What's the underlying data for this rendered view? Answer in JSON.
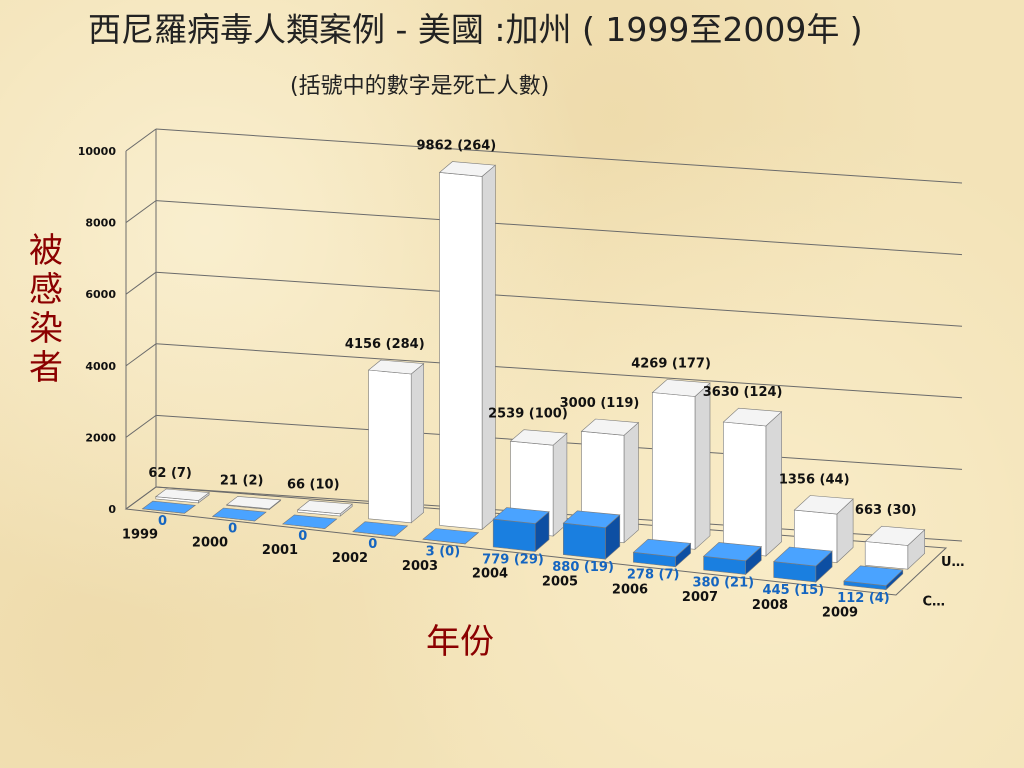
{
  "title": "西尼羅病毒人類案例 - 美國 :加州 ( 1999至2009年 )",
  "subtitle": "(括號中的數字是死亡人數)",
  "ylabel": "被感染者",
  "xlabel": "年份",
  "chart_data": {
    "type": "bar",
    "subtype": "3d-clustered-depth",
    "categories": [
      "1999",
      "2000",
      "2001",
      "2002",
      "2003",
      "2004",
      "2005",
      "2006",
      "2007",
      "2008",
      "2009"
    ],
    "ylim": [
      0,
      10000
    ],
    "yticks": [
      0,
      2000,
      4000,
      6000,
      8000,
      10000
    ],
    "grid": true,
    "legend_position": "right",
    "series": [
      {
        "name": "U…",
        "color": "#ffffff",
        "values": [
          62,
          21,
          66,
          4156,
          9862,
          2539,
          3000,
          4269,
          3630,
          1356,
          663
        ],
        "labels": [
          "62 (7)",
          "21 (2)",
          "66 (10)",
          "4156 (284)",
          "9862 (264)",
          "2539 (100)",
          "3000 (119)",
          "4269 (177)",
          "3630 (124)",
          "1356 (44)",
          "663 (30)"
        ]
      },
      {
        "name": "C…",
        "color": "#1a7fe0",
        "values": [
          0,
          0,
          0,
          0,
          3,
          779,
          880,
          278,
          380,
          445,
          112
        ],
        "labels": [
          "0",
          "0",
          "0",
          "0",
          "3 (0)",
          "779 (29)",
          "880 (19)",
          "278 (7)",
          "380 (21)",
          "445 (15)",
          "112 (4)"
        ]
      }
    ]
  }
}
